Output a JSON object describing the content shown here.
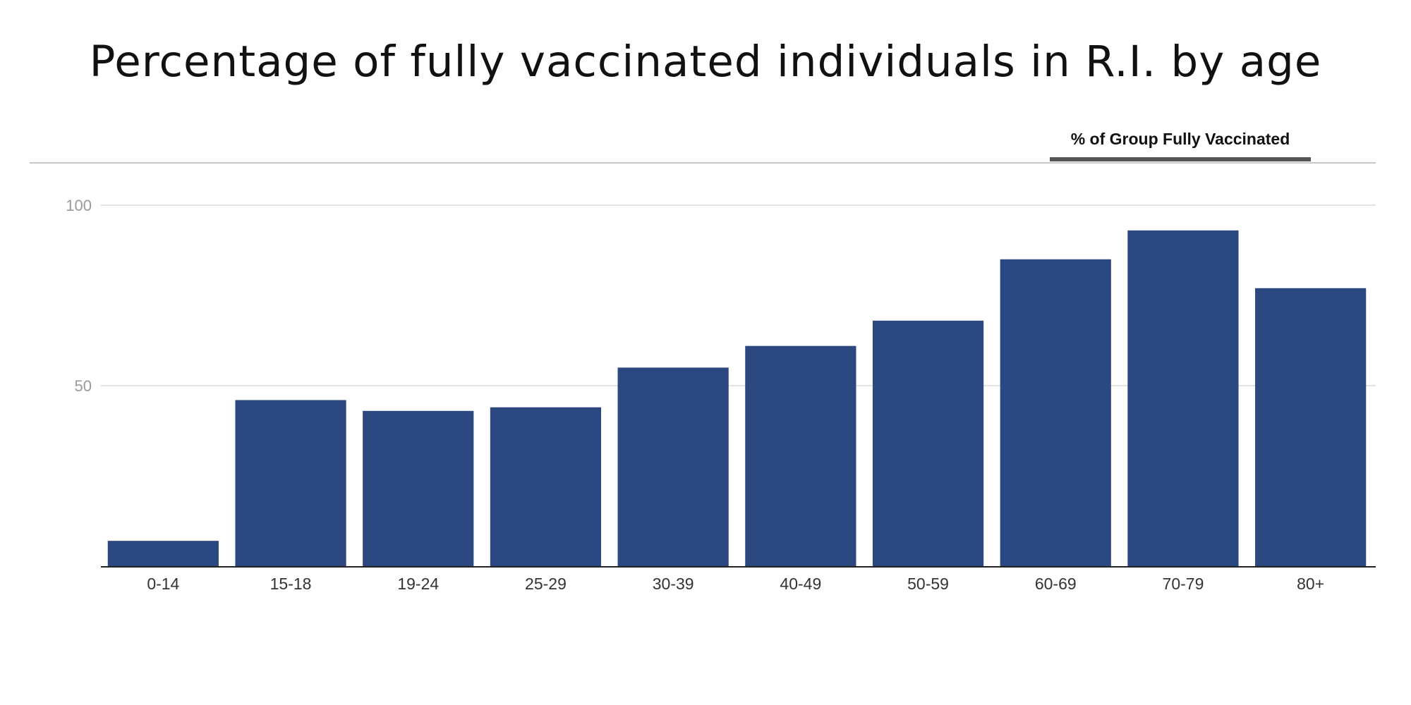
{
  "chart_data": {
    "type": "bar",
    "title": "Percentage of fully vaccinated individuals in R.I. by age",
    "legend_tab": "% of Group Fully Vaccinated",
    "categories": [
      "0-14",
      "15-18",
      "19-24",
      "25-29",
      "30-39",
      "40-49",
      "50-59",
      "60-69",
      "70-79",
      "80+"
    ],
    "series": [
      {
        "name": "% of Group Fully Vaccinated",
        "values": [
          7,
          46,
          43,
          44,
          55,
          61,
          68,
          85,
          93,
          77
        ]
      }
    ],
    "ylim": [
      0,
      100
    ],
    "yticks": [
      50,
      100
    ],
    "grid": true,
    "bar_color": "#2b4880"
  }
}
